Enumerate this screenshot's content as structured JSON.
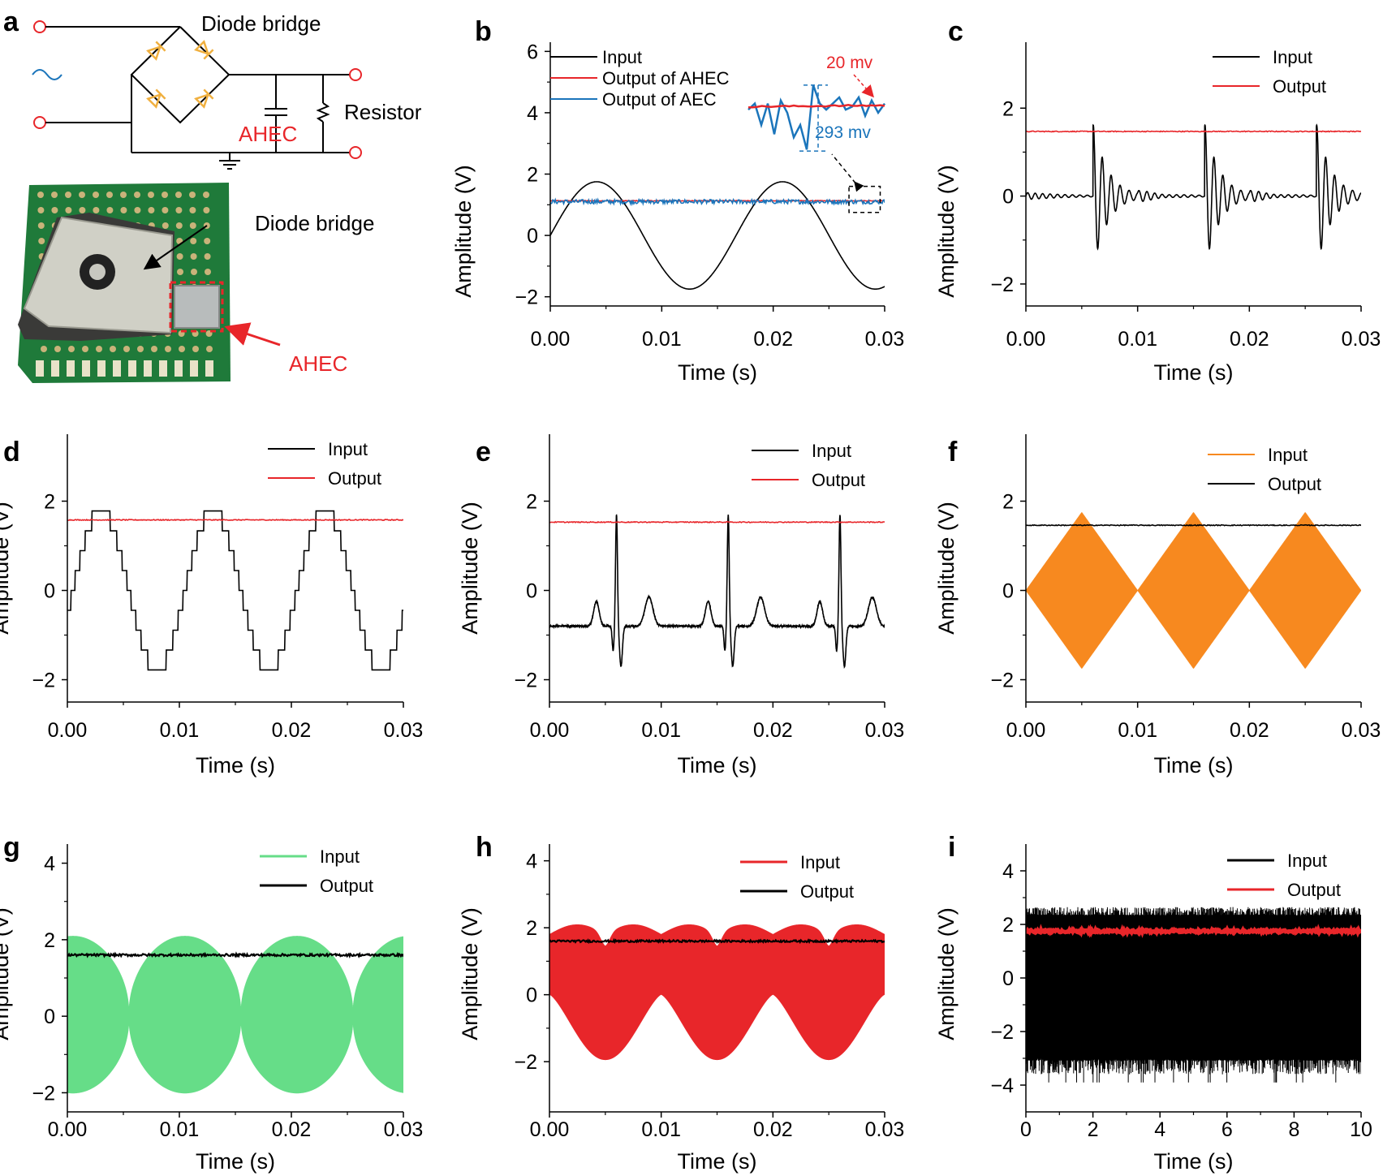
{
  "colors": {
    "black": "#000000",
    "red": "#e8262a",
    "blue": "#1b75bb",
    "orange": "#f7891f",
    "green": "#66dd88",
    "diode": "#f0b040",
    "pcb_green": "#1f7a3a",
    "module_gray": "#d0d0c6"
  },
  "panel_a": {
    "letter": "a",
    "circuit": {
      "top_label": "Diode bridge",
      "capacitor_label": "AHEC",
      "resistor_label": "Resistor",
      "source_symbol": "~"
    },
    "photo": {
      "bridge_label": "Diode bridge",
      "ahec_label": "AHEC"
    }
  },
  "chart_data": [
    {
      "id": "b",
      "letter": "b",
      "type": "line",
      "xlabel": "Time (s)",
      "ylabel": "Amplitude (V)",
      "xlim": [
        0,
        0.03
      ],
      "ylim": [
        -2.3,
        6.3
      ],
      "xticks": [
        0,
        0.01,
        0.02,
        0.03
      ],
      "xtick_labels": [
        "0.00",
        "0.01",
        "0.02",
        "0.03"
      ],
      "yticks": [
        -2,
        0,
        2,
        4,
        6
      ],
      "ytick_labels": [
        "−2",
        "0",
        "2",
        "4",
        "6"
      ],
      "series": [
        {
          "name": "Input",
          "color": "#000000",
          "kind": "sine",
          "amplitude": 1.75,
          "frequency_hz": 60,
          "offset": 0
        },
        {
          "name": "Output of AHEC",
          "color": "#e8262a",
          "kind": "flat",
          "level": 1.13,
          "noise": 0.01
        },
        {
          "name": "Output of AEC",
          "color": "#1b75bb",
          "kind": "flat",
          "level": 1.1,
          "noise": 0.07
        }
      ],
      "inset": {
        "ahec_ripple_label": "20 mv",
        "aec_ripple_label": "293 mv",
        "source_window_s": [
          0.0268,
          0.0296
        ]
      }
    },
    {
      "id": "c",
      "letter": "c",
      "type": "line",
      "xlabel": "Time (s)",
      "ylabel": "Amplitude (V)",
      "xlim": [
        0,
        0.03
      ],
      "ylim": [
        -2.5,
        3.5
      ],
      "xticks": [
        0,
        0.01,
        0.02,
        0.03
      ],
      "xtick_labels": [
        "0.00",
        "0.01",
        "0.02",
        "0.03"
      ],
      "yticks": [
        -2,
        0,
        2
      ],
      "ytick_labels": [
        "−2",
        "0",
        "2"
      ],
      "series": [
        {
          "name": "Input",
          "color": "#000000",
          "kind": "damped_pulses",
          "pulse_times_s": [
            0.006,
            0.016,
            0.026
          ],
          "peak": 1.75,
          "trough": -1.4
        },
        {
          "name": "Output",
          "color": "#e8262a",
          "kind": "flat",
          "level": 1.47,
          "noise": 0.01
        }
      ]
    },
    {
      "id": "d",
      "letter": "d",
      "type": "line",
      "xlabel": "Time (s)",
      "ylabel": "Amplitude (V)",
      "xlim": [
        0,
        0.03
      ],
      "ylim": [
        -2.5,
        3.5
      ],
      "xticks": [
        0,
        0.01,
        0.02,
        0.03
      ],
      "xtick_labels": [
        "0.00",
        "0.01",
        "0.02",
        "0.03"
      ],
      "yticks": [
        -2,
        0,
        2
      ],
      "ytick_labels": [
        "−2",
        "0",
        "2"
      ],
      "series": [
        {
          "name": "Input",
          "color": "#000000",
          "kind": "staircase",
          "amplitude": 1.78,
          "period_s": 0.01
        },
        {
          "name": "Output",
          "color": "#e8262a",
          "kind": "flat",
          "level": 1.58,
          "noise": 0.01
        }
      ]
    },
    {
      "id": "e",
      "letter": "e",
      "type": "line",
      "xlabel": "Time (s)",
      "ylabel": "Amplitude (V)",
      "xlim": [
        0,
        0.03
      ],
      "ylim": [
        -2.5,
        3.5
      ],
      "xticks": [
        0,
        0.01,
        0.02,
        0.03
      ],
      "xtick_labels": [
        "0.00",
        "0.01",
        "0.02",
        "0.03"
      ],
      "yticks": [
        -2,
        0,
        2
      ],
      "ytick_labels": [
        "−2",
        "0",
        "2"
      ],
      "series": [
        {
          "name": "Input",
          "color": "#000000",
          "kind": "ecg",
          "r_peak_times_s": [
            0.006,
            0.016,
            0.026
          ],
          "baseline": -0.8,
          "peak": 1.7
        },
        {
          "name": "Output",
          "color": "#e8262a",
          "kind": "flat",
          "level": 1.53,
          "noise": 0.01
        }
      ]
    },
    {
      "id": "f",
      "letter": "f",
      "type": "line",
      "xlabel": "Time (s)",
      "ylabel": "Amplitude (V)",
      "xlim": [
        0,
        0.03
      ],
      "ylim": [
        -2.5,
        3.5
      ],
      "xticks": [
        0,
        0.01,
        0.02,
        0.03
      ],
      "xtick_labels": [
        "0.00",
        "0.01",
        "0.02",
        "0.03"
      ],
      "yticks": [
        -2,
        0,
        2
      ],
      "ytick_labels": [
        "−2",
        "0",
        "2"
      ],
      "series": [
        {
          "name": "Input",
          "color": "#f7891f",
          "kind": "envelope_triangle",
          "peak": 1.75,
          "period_s": 0.01
        },
        {
          "name": "Output",
          "color": "#000000",
          "kind": "flat",
          "level": 1.46,
          "noise": 0.01
        }
      ]
    },
    {
      "id": "g",
      "letter": "g",
      "type": "line",
      "xlabel": "Time (s)",
      "ylabel": "Amplitude (V)",
      "xlim": [
        0,
        0.03
      ],
      "ylim": [
        -2.5,
        4.5
      ],
      "xticks": [
        0,
        0.01,
        0.02,
        0.03
      ],
      "xtick_labels": [
        "0.00",
        "0.01",
        "0.02",
        "0.03"
      ],
      "yticks": [
        -2,
        0,
        2,
        4
      ],
      "ytick_labels": [
        "−2",
        "0",
        "2",
        "4"
      ],
      "series": [
        {
          "name": "Input",
          "color": "#66dd88",
          "kind": "envelope_round",
          "peak": 2.1,
          "period_s": 0.01
        },
        {
          "name": "Output",
          "color": "#000000",
          "kind": "flat",
          "level": 1.6,
          "noise": 0.03
        }
      ]
    },
    {
      "id": "h",
      "letter": "h",
      "type": "line",
      "xlabel": "Time (s)",
      "ylabel": "Amplitude (V)",
      "xlim": [
        0,
        0.03
      ],
      "ylim": [
        -3.5,
        4.5
      ],
      "xticks": [
        0,
        0.01,
        0.02,
        0.03
      ],
      "xtick_labels": [
        "0.00",
        "0.01",
        "0.02",
        "0.03"
      ],
      "yticks": [
        -2,
        0,
        2,
        4
      ],
      "ytick_labels": [
        "−2",
        "0",
        "2",
        "4"
      ],
      "series": [
        {
          "name": "Input",
          "color": "#e8262a",
          "kind": "envelope_heart",
          "peak": 2.1,
          "trough": -1.95,
          "period_s": 0.01
        },
        {
          "name": "Output",
          "color": "#000000",
          "kind": "flat",
          "level": 1.6,
          "noise": 0.03
        }
      ]
    },
    {
      "id": "i",
      "letter": "i",
      "type": "line",
      "xlabel": "Time (s)",
      "ylabel": "Amplitude (V)",
      "xlim": [
        0,
        10
      ],
      "ylim": [
        -5,
        5
      ],
      "xticks": [
        0,
        2,
        4,
        6,
        8,
        10
      ],
      "xtick_labels": [
        "0",
        "2",
        "4",
        "6",
        "8",
        "10"
      ],
      "yticks": [
        -4,
        -2,
        0,
        2,
        4
      ],
      "ytick_labels": [
        "−4",
        "−2",
        "0",
        "2",
        "4"
      ],
      "series": [
        {
          "name": "Input",
          "color": "#000000",
          "kind": "noise_band",
          "low": -3.0,
          "high": 2.3,
          "spike_low": -3.9,
          "spike_high": 2.6
        },
        {
          "name": "Output",
          "color": "#e8262a",
          "kind": "flat",
          "level": 1.75,
          "noise": 0.05
        }
      ]
    }
  ]
}
